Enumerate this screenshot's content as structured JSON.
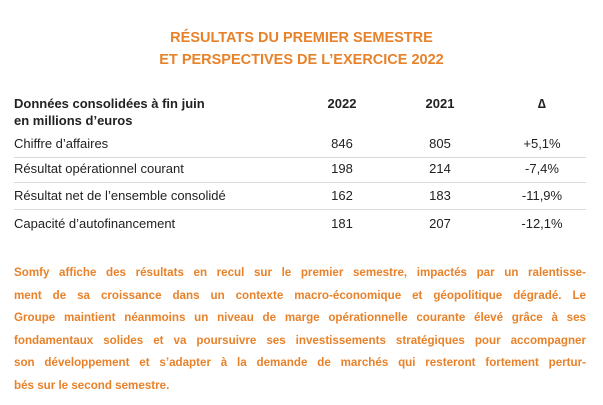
{
  "header": {
    "title": [
      "RÉSULTATS DU PREMIER SEMESTRE",
      "ET PERSPECTIVES DE L’EXERCICE 2022"
    ]
  },
  "table": {
    "header": {
      "label": [
        "Données consolidées à fin juin",
        "en millions d’euros"
      ],
      "columns": [
        "2022",
        "2021",
        "∆"
      ]
    },
    "rows": [
      [
        "Chiffre d’affaires",
        "846",
        "805",
        "+5,1%"
      ],
      [
        "Résultat opérationnel courant",
        "198",
        "214",
        "-7,4%"
      ],
      [
        "Résultat net de l’ensemble consolidé",
        "162",
        "183",
        "-11,9%"
      ],
      [
        "Capacité d’autofinancement",
        "181",
        "207",
        "-12,1%"
      ]
    ]
  },
  "paragraph": {
    "lines": [
      "Somfy affiche des résultats en recul sur le premier semestre, impactés par un ralentisse-",
      "ment de sa croissance dans un contexte macro-économique et géopolitique dégradé. Le",
      "Groupe maintient néanmoins un niveau de marge opérationnelle courante élevé grâce à ses",
      "fondamentaux solides et va poursuivre ses investissements stratégiques pour accompagner",
      "son développement et s’adapter à la demande de marchés qui resteront fortement pertur-",
      "bés sur le second semestre."
    ]
  }
}
